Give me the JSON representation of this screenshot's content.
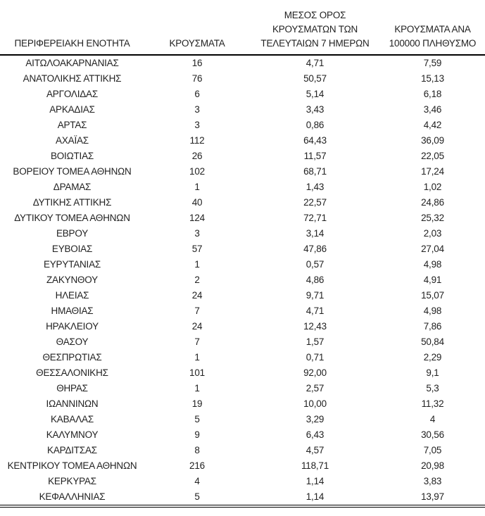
{
  "page": {
    "background_color": "#ffffff",
    "text_color": "#222222",
    "rule_color": "#000000"
  },
  "table": {
    "columns": [
      {
        "label": "ΠΕΡΙΦΕΡΕΙΑΚΗ ΕΝΟΤΗΤΑ"
      },
      {
        "label": "ΚΡΟΥΣΜΑΤΑ"
      },
      {
        "label": "ΜΕΣΟΣ ΟΡΟΣ\nΚΡΟΥΣΜΑΤΩΝ ΤΩΝ\nΤΕΛΕΥΤΑΙΩΝ 7 ΗΜΕΡΩΝ"
      },
      {
        "label": "ΚΡΟΥΣΜΑΤΑ ΑΝΑ\n100000 ΠΛΗΘΥΣΜΟ"
      }
    ],
    "rows": [
      [
        "ΑΙΤΩΛΟΑΚΑΡΝΑΝΙΑΣ",
        "16",
        "4,71",
        "7,59"
      ],
      [
        "ΑΝΑΤΟΛΙΚΗΣ ΑΤΤΙΚΗΣ",
        "76",
        "50,57",
        "15,13"
      ],
      [
        "ΑΡΓΟΛΙΔΑΣ",
        "6",
        "5,14",
        "6,18"
      ],
      [
        "ΑΡΚΑΔΙΑΣ",
        "3",
        "3,43",
        "3,46"
      ],
      [
        "ΑΡΤΑΣ",
        "3",
        "0,86",
        "4,42"
      ],
      [
        "ΑΧΑΪΑΣ",
        "112",
        "64,43",
        "36,09"
      ],
      [
        "ΒΟΙΩΤΙΑΣ",
        "26",
        "11,57",
        "22,05"
      ],
      [
        "ΒΟΡΕΙΟΥ ΤΟΜΕΑ ΑΘΗΝΩΝ",
        "102",
        "68,71",
        "17,24"
      ],
      [
        "ΔΡΑΜΑΣ",
        "1",
        "1,43",
        "1,02"
      ],
      [
        "ΔΥΤΙΚΗΣ ΑΤΤΙΚΗΣ",
        "40",
        "22,57",
        "24,86"
      ],
      [
        "ΔΥΤΙΚΟΥ ΤΟΜΕΑ ΑΘΗΝΩΝ",
        "124",
        "72,71",
        "25,32"
      ],
      [
        "ΕΒΡΟΥ",
        "3",
        "3,14",
        "2,03"
      ],
      [
        "ΕΥΒΟΙΑΣ",
        "57",
        "47,86",
        "27,04"
      ],
      [
        "ΕΥΡΥΤΑΝΙΑΣ",
        "1",
        "0,57",
        "4,98"
      ],
      [
        "ΖΑΚΥΝΘΟΥ",
        "2",
        "4,86",
        "4,91"
      ],
      [
        "ΗΛΕΙΑΣ",
        "24",
        "9,71",
        "15,07"
      ],
      [
        "ΗΜΑΘΙΑΣ",
        "7",
        "4,71",
        "4,98"
      ],
      [
        "ΗΡΑΚΛΕΙΟΥ",
        "24",
        "12,43",
        "7,86"
      ],
      [
        "ΘΑΣΟΥ",
        "7",
        "1,57",
        "50,84"
      ],
      [
        "ΘΕΣΠΡΩΤΙΑΣ",
        "1",
        "0,71",
        "2,29"
      ],
      [
        "ΘΕΣΣΑΛΟΝΙΚΗΣ",
        "101",
        "92,00",
        "9,1"
      ],
      [
        "ΘΗΡΑΣ",
        "1",
        "2,57",
        "5,3"
      ],
      [
        "ΙΩΑΝΝΙΝΩΝ",
        "19",
        "10,00",
        "11,32"
      ],
      [
        "ΚΑΒΑΛΑΣ",
        "5",
        "3,29",
        "4"
      ],
      [
        "ΚΑΛΥΜΝΟΥ",
        "9",
        "6,43",
        "30,56"
      ],
      [
        "ΚΑΡΔΙΤΣΑΣ",
        "8",
        "4,57",
        "7,05"
      ],
      [
        "ΚΕΝΤΡΙΚΟΥ ΤΟΜΕΑ ΑΘΗΝΩΝ",
        "216",
        "118,71",
        "20,98"
      ],
      [
        "ΚΕΡΚΥΡΑΣ",
        "4",
        "1,14",
        "3,83"
      ],
      [
        "ΚΕΦΑΛΛΗΝΙΑΣ",
        "5",
        "1,14",
        "13,97"
      ]
    ]
  }
}
